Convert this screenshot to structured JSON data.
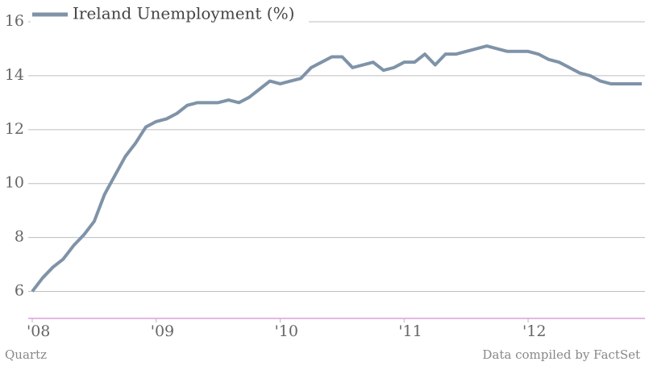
{
  "chart_data": {
    "type": "line",
    "categories": [
      "'08",
      null,
      null,
      null,
      null,
      null,
      null,
      null,
      null,
      null,
      null,
      null,
      "'09",
      null,
      null,
      null,
      null,
      null,
      null,
      null,
      null,
      null,
      null,
      null,
      "'10",
      null,
      null,
      null,
      null,
      null,
      null,
      null,
      null,
      null,
      null,
      null,
      "'11",
      null,
      null,
      null,
      null,
      null,
      null,
      null,
      null,
      null,
      null,
      null,
      "'12",
      null,
      null,
      null,
      null,
      null,
      null,
      null,
      null,
      null,
      null,
      null
    ],
    "series": [
      {
        "name": "Ireland Unemployment (%)",
        "color": "#7f93a8",
        "values": [
          6.0,
          6.5,
          6.9,
          7.2,
          7.7,
          8.1,
          8.6,
          9.6,
          10.3,
          11.0,
          11.5,
          12.1,
          12.3,
          12.4,
          12.6,
          12.9,
          13.0,
          13.0,
          13.0,
          13.1,
          13.0,
          13.2,
          13.5,
          13.8,
          13.7,
          13.8,
          13.9,
          14.3,
          14.5,
          14.7,
          14.7,
          14.3,
          14.4,
          14.5,
          14.2,
          14.3,
          14.5,
          14.5,
          14.8,
          14.4,
          14.8,
          14.8,
          14.9,
          15.0,
          15.1,
          15.0,
          14.9,
          14.9,
          14.9,
          14.8,
          14.6,
          14.5,
          14.3,
          14.1,
          14.0,
          13.8,
          13.7,
          13.7,
          13.7,
          13.7
        ]
      }
    ],
    "ylim": [
      5,
      16
    ],
    "yticks": [
      6,
      8,
      10,
      12,
      14,
      16
    ],
    "grid": true,
    "source_left": "Quartz",
    "source_right": "Data compiled by FactSet"
  }
}
